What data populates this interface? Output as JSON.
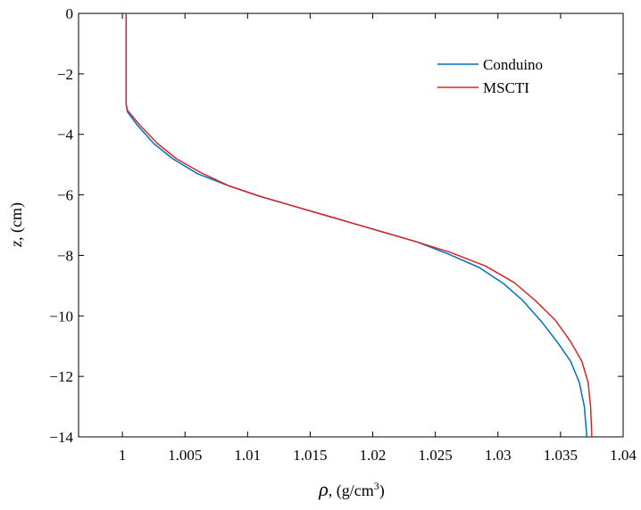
{
  "chart_data": {
    "type": "line",
    "xlabel_symbol": "ρ",
    "xlabel_units": ", (g/cm",
    "xlabel_sup": "3",
    "xlabel_close": ")",
    "ylabel_symbol": "z",
    "ylabel_units": ", (cm)",
    "xlim": [
      0.9965,
      1.04
    ],
    "ylim": [
      -14,
      0
    ],
    "xticks": [
      1,
      1.005,
      1.01,
      1.015,
      1.02,
      1.025,
      1.03,
      1.035,
      1.04
    ],
    "xtick_labels": [
      "1",
      "1.005",
      "1.01",
      "1.015",
      "1.02",
      "1.025",
      "1.03",
      "1.035",
      "1.04"
    ],
    "yticks": [
      0,
      -2,
      -4,
      -6,
      -8,
      -10,
      -12,
      -14
    ],
    "ytick_labels": [
      "0",
      "−2",
      "−4",
      "−6",
      "−8",
      "−10",
      "−12",
      "−14"
    ],
    "grid": false,
    "legend_position": "top-right",
    "series": [
      {
        "name": "Conduino",
        "color": "#0072BD",
        "points": [
          [
            1.0003,
            0
          ],
          [
            1.0003,
            -1
          ],
          [
            1.0003,
            -2
          ],
          [
            1.0003,
            -3
          ],
          [
            1.0004,
            -3.25
          ],
          [
            1.0012,
            -3.7
          ],
          [
            1.0025,
            -4.3
          ],
          [
            1.004,
            -4.8
          ],
          [
            1.006,
            -5.3
          ],
          [
            1.0085,
            -5.7
          ],
          [
            1.011,
            -6.05
          ],
          [
            1.0135,
            -6.35
          ],
          [
            1.016,
            -6.65
          ],
          [
            1.0185,
            -6.95
          ],
          [
            1.021,
            -7.25
          ],
          [
            1.0235,
            -7.55
          ],
          [
            1.026,
            -7.95
          ],
          [
            1.0285,
            -8.4
          ],
          [
            1.0305,
            -8.95
          ],
          [
            1.032,
            -9.5
          ],
          [
            1.0335,
            -10.2
          ],
          [
            1.0348,
            -10.9
          ],
          [
            1.0358,
            -11.5
          ],
          [
            1.0365,
            -12.2
          ],
          [
            1.0369,
            -13
          ],
          [
            1.0371,
            -14
          ]
        ]
      },
      {
        "name": "MSCTI",
        "color": "#D62728",
        "points": [
          [
            1.0003,
            0
          ],
          [
            1.0003,
            -1
          ],
          [
            1.0003,
            -2
          ],
          [
            1.0003,
            -3
          ],
          [
            1.0004,
            -3.2
          ],
          [
            1.0014,
            -3.7
          ],
          [
            1.0028,
            -4.3
          ],
          [
            1.0043,
            -4.8
          ],
          [
            1.0062,
            -5.25
          ],
          [
            1.0085,
            -5.7
          ],
          [
            1.011,
            -6.05
          ],
          [
            1.0135,
            -6.35
          ],
          [
            1.016,
            -6.65
          ],
          [
            1.0185,
            -6.95
          ],
          [
            1.021,
            -7.25
          ],
          [
            1.0235,
            -7.55
          ],
          [
            1.0262,
            -7.9
          ],
          [
            1.029,
            -8.35
          ],
          [
            1.0313,
            -8.9
          ],
          [
            1.033,
            -9.5
          ],
          [
            1.0346,
            -10.15
          ],
          [
            1.0358,
            -10.85
          ],
          [
            1.0367,
            -11.5
          ],
          [
            1.0372,
            -12.2
          ],
          [
            1.0374,
            -13
          ],
          [
            1.0375,
            -14
          ]
        ]
      }
    ]
  }
}
